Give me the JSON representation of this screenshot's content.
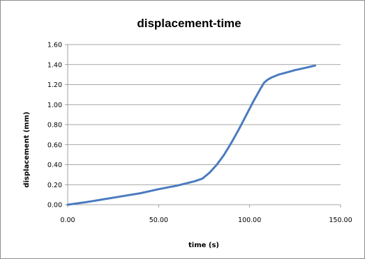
{
  "chart_data": {
    "type": "line",
    "title": "displacement-time",
    "xlabel": "time (s)",
    "ylabel": "displacement (mm)",
    "xlim": [
      0,
      150
    ],
    "ylim": [
      0,
      1.6
    ],
    "x_ticks": [
      "0.00",
      "50.00",
      "100.00",
      "150.00"
    ],
    "y_ticks": [
      "0.00",
      "0.20",
      "0.40",
      "0.60",
      "0.80",
      "1.00",
      "1.20",
      "1.40",
      "1.60"
    ],
    "grid": "horizontal",
    "legend": "none",
    "series": [
      {
        "color": "#4a7bbf",
        "x": [
          0,
          10,
          20,
          30,
          40,
          50,
          60,
          70,
          74,
          78,
          82,
          86,
          90,
          94,
          98,
          102,
          106,
          108,
          110,
          112,
          116,
          120,
          125,
          130,
          136
        ],
        "y": [
          0.0,
          0.025,
          0.055,
          0.085,
          0.115,
          0.155,
          0.19,
          0.235,
          0.26,
          0.32,
          0.4,
          0.5,
          0.62,
          0.75,
          0.89,
          1.03,
          1.16,
          1.22,
          1.25,
          1.27,
          1.3,
          1.32,
          1.345,
          1.365,
          1.39
        ]
      }
    ]
  }
}
